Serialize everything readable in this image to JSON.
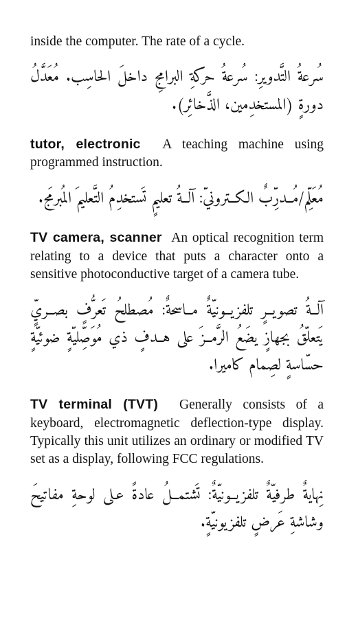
{
  "entries": [
    {
      "en_pre": "inside the computer. The rate of a cycle.",
      "ar": "سُرعةُ التَّدويرِ: سُرعةُ حركةِ البرامجِ داخلَ الحاسِب. مُعَدَّلُ دورةٍ (المستخدِمين، الذَّخائِر)."
    },
    {
      "term": "tutor, electronic",
      "en": "A teaching machine using programmed instruction.",
      "ar": "مُعَلِّم/مُــدرِّبٌ الكــترونيّ: آلــةُ تعليمٍ تَستخدِمُ التَّعليمَ المُبرمَج."
    },
    {
      "term": "TV camera, scanner",
      "en": "An optical recognition term relating to a device that puts a character onto a sensitive photoconductive target of a camera tube.",
      "ar": "آلــةُ تصويــرٍ تلفزيــونيّةٌ مــاسحةٌ: مُصطلحُ تَعرُّفٍ بصــريٍّ يَتعلّقُ بجهازٍ يضَعُ الرَّمــزَ على هــدفٍ ذي مُوَصِّليّةٍ ضوئيّةٍ حسّاسةٍ لصِمام كاميرا."
    },
    {
      "term": "TV terminal (TVT)",
      "en": "Generally consists of a keyboard, electromagnetic deflection-type display. Typically this unit utilizes an ordinary or modified TV set as a display, following FCC regulations.",
      "ar": "نِهايةٌ طرفيّةٌ تلفزيــونيّةٌ: تَشتمــلُ عادةً عـلى لوحةِ مفاتيحَ وشاشةِ عَرضٍ تلفزيونيّةٍ."
    }
  ]
}
